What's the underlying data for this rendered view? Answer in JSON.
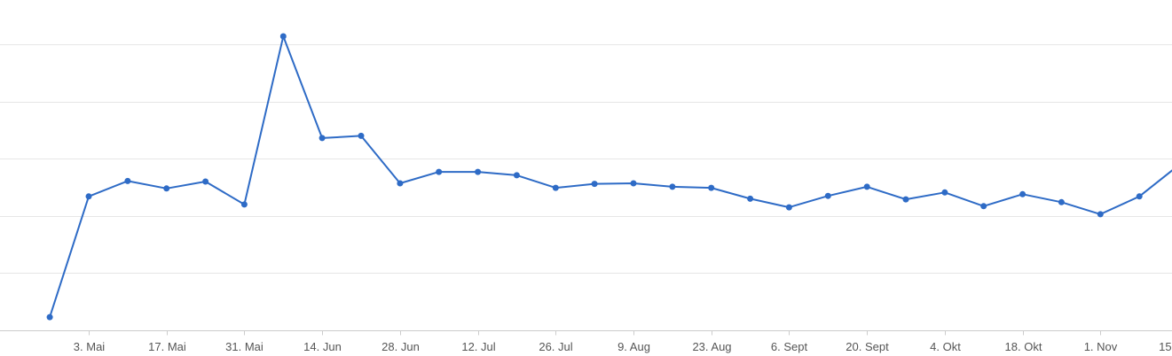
{
  "chart_data": {
    "type": "line",
    "title": "",
    "xlabel": "",
    "ylabel": "",
    "x_tick_labels": [
      "3. Mai",
      "17. Mai",
      "31. Mai",
      "14. Jun",
      "28. Jun",
      "12. Jul",
      "26. Jul",
      "9. Aug",
      "23. Aug",
      "6. Sept",
      "20. Sept",
      "4. Okt",
      "18. Okt",
      "1. Nov",
      "15. Nov"
    ],
    "x_range": [
      -1.28,
      28.84
    ],
    "ylim": [
      0,
      5
    ],
    "gridlines": [
      1,
      2,
      3,
      4,
      5
    ],
    "grid": true,
    "legend": "none",
    "color": "#2e6bc6",
    "series": [
      {
        "values": [
          0.23,
          2.34,
          2.61,
          2.48,
          2.6,
          2.2,
          5.14,
          3.36,
          3.4,
          2.57,
          2.77,
          2.77,
          2.71,
          2.49,
          2.56,
          2.57,
          2.51,
          2.49,
          2.3,
          2.15,
          2.35,
          2.51,
          2.29,
          2.41,
          2.17,
          2.38,
          2.24,
          2.03,
          2.34,
          2.88,
          3.03
        ]
      }
    ]
  }
}
